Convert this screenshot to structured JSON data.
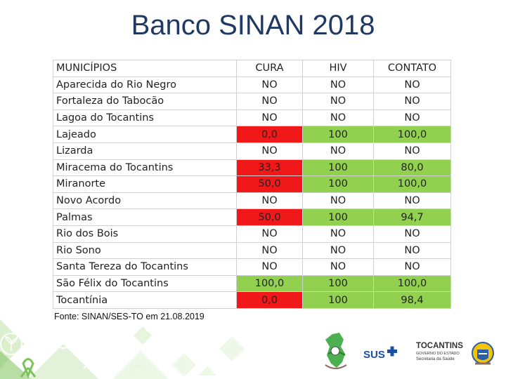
{
  "title": "Banco SINAN 2018",
  "table": {
    "headers": [
      "MUNICÍPIOS",
      "CURA",
      "HIV",
      "CONTATO"
    ],
    "rows": [
      {
        "municipio": "Aparecida do Rio Negro",
        "cura": "NO",
        "hiv": "NO",
        "contato": "NO"
      },
      {
        "municipio": "Fortaleza do Tabocão",
        "cura": "NO",
        "hiv": "NO",
        "contato": "NO"
      },
      {
        "municipio": "Lagoa do Tocantins",
        "cura": "NO",
        "hiv": "NO",
        "contato": "NO"
      },
      {
        "municipio": "Lajeado",
        "cura": "0,0",
        "hiv": "100",
        "contato": "100,0"
      },
      {
        "municipio": "Lizarda",
        "cura": "NO",
        "hiv": "NO",
        "contato": "NO"
      },
      {
        "municipio": "Miracema do Tocantins",
        "cura": "33,3",
        "hiv": "100",
        "contato": "80,0"
      },
      {
        "municipio": "Miranorte",
        "cura": "50,0",
        "hiv": "100",
        "contato": "100,0"
      },
      {
        "municipio": "Novo Acordo",
        "cura": "NO",
        "hiv": "NO",
        "contato": "NO"
      },
      {
        "municipio": "Palmas",
        "cura": "50,0",
        "hiv": "100",
        "contato": "94,7"
      },
      {
        "municipio": "Rio dos Bois",
        "cura": "NO",
        "hiv": "NO",
        "contato": "NO"
      },
      {
        "municipio": "Rio Sono",
        "cura": "NO",
        "hiv": "NO",
        "contato": "NO"
      },
      {
        "municipio": "Santa Tereza do Tocantins",
        "cura": "NO",
        "hiv": "NO",
        "contato": "NO"
      },
      {
        "municipio": "São Félix do Tocantins",
        "cura": "100,0",
        "hiv": "100",
        "contato": "100,0"
      },
      {
        "municipio": "Tocantínia",
        "cura": "0,0",
        "hiv": "100",
        "contato": "98,4"
      }
    ]
  },
  "colors": {
    "title": "#1f3864",
    "bad": "#f01818",
    "good": "#92d050",
    "brand_green": "#6ab04c"
  },
  "source_note": "Fonte: SINAN/SES-TO em 21.08.2019",
  "logos": {
    "sus": "SUS",
    "tocantins": "TOCANTINS",
    "governo": "GOVERNO DO ESTADO",
    "secretaria": "Secretaria da Saúde"
  },
  "icons": [
    "plant-icon",
    "eye-icon",
    "paw-icon",
    "ribbon-icon",
    "runner-icon",
    "mosquito-icon",
    "state-map-logo-icon",
    "coat-of-arms-icon"
  ]
}
